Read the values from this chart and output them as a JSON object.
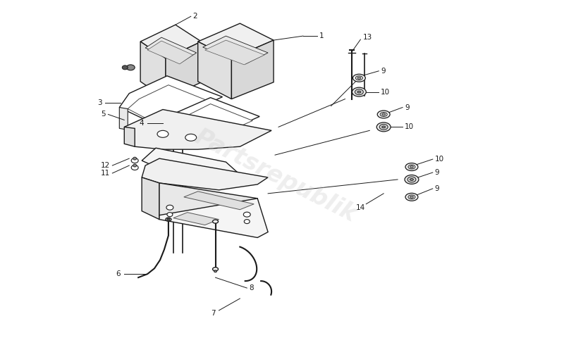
{
  "background_color": "#ffffff",
  "line_color": "#1a1a1a",
  "watermark_text": "Partsrepublik",
  "watermark_color": "#c8c8c8",
  "watermark_alpha": 0.3,
  "fig_width": 8.0,
  "fig_height": 4.9,
  "dpi": 100
}
